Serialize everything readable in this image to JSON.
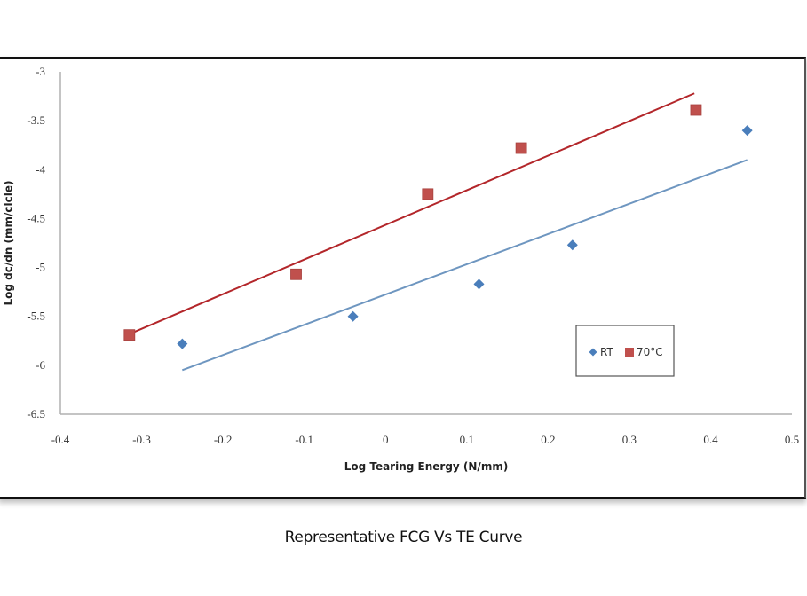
{
  "caption": "Representative FCG Vs TE Curve",
  "chart_data": {
    "type": "scatter",
    "title": "",
    "xlabel": "Log Tearing Energy (N/mm)",
    "ylabel": "Log dc/dn (mm/clcle)",
    "xlim": [
      -0.4,
      0.5
    ],
    "ylim": [
      -6.5,
      -3
    ],
    "x_ticks": [
      "-0.4",
      "-0.3",
      "-0.2",
      "-0.1",
      "0",
      "0.1",
      "0.2",
      "0.3",
      "0.4",
      "0.5"
    ],
    "y_ticks": [
      "-3",
      "-3.5",
      "-4",
      "-4.5",
      "-5",
      "-5.5",
      "-6",
      "-6.5"
    ],
    "grid": false,
    "legend_position": "lower-right",
    "series": [
      {
        "name": "RT",
        "marker": "diamond",
        "color": "#4a7ebb",
        "trend_color": "#6e96c0",
        "x": [
          -0.25,
          -0.04,
          0.115,
          0.23,
          0.445
        ],
        "y": [
          -5.78,
          -5.5,
          -5.17,
          -4.77,
          -3.6
        ],
        "trendline": {
          "x": [
            -0.25,
            0.445
          ],
          "y": [
            -6.05,
            -3.9
          ]
        }
      },
      {
        "name": "70°C",
        "marker": "square",
        "color": "#c0504d",
        "trend_color": "#b3262a",
        "x": [
          -0.315,
          -0.11,
          0.052,
          0.167,
          0.382
        ],
        "y": [
          -5.69,
          -5.07,
          -4.25,
          -3.78,
          -3.39
        ],
        "trendline": {
          "x": [
            -0.315,
            0.38
          ],
          "y": [
            -5.68,
            -3.22
          ]
        }
      }
    ]
  }
}
